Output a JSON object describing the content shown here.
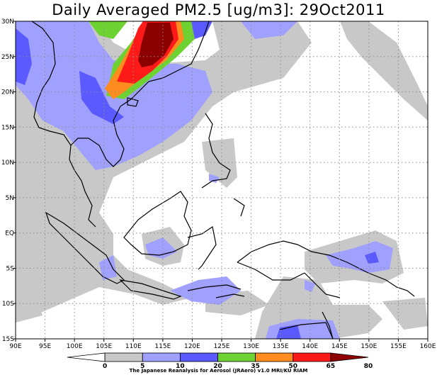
{
  "title": "Daily Averaged PM2.5 [ug/m3]: 29Oct2011",
  "credit": "The Japanese Reanalysis for Aerosol (JRAero) v1.0 MRI/KU RIAM",
  "map": {
    "lon_range": [
      90,
      160
    ],
    "lat_range": [
      -15,
      30
    ],
    "lon_ticks": [
      "90E",
      "95E",
      "100E",
      "105E",
      "110E",
      "115E",
      "120E",
      "125E",
      "130E",
      "135E",
      "140E",
      "145E",
      "150E",
      "155E",
      "160E"
    ],
    "lat_ticks": [
      "30N",
      "25N",
      "20N",
      "15N",
      "10N",
      "5N",
      "EQ",
      "5S",
      "10S",
      "15S"
    ],
    "grid": true
  },
  "legend": {
    "values": [
      "0",
      "5",
      "10",
      "20",
      "35",
      "50",
      "65",
      "80"
    ],
    "colors": [
      "#ffffff",
      "#c8c8c8",
      "#a0a0ff",
      "#5a5aff",
      "#6fd233",
      "#ff8c1e",
      "#ff1a1a",
      "#8c0000"
    ]
  },
  "colors": {
    "c5": "#c8c8c8",
    "c10": "#a0a0ff",
    "c20": "#5a5aff",
    "c35": "#6fd233",
    "c50": "#ff8c1e",
    "c65": "#ff1a1a",
    "c80": "#8c0000"
  }
}
